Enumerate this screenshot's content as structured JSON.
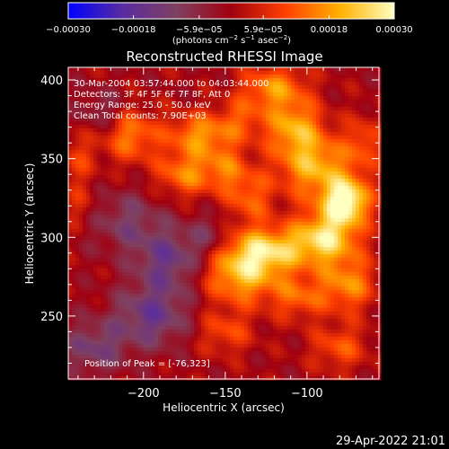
{
  "chart_data": {
    "type": "heatmap",
    "title": "Reconstructed RHESSI Image",
    "xlabel": "Heliocentric X (arcsec)",
    "ylabel": "Heliocentric Y (arcsec)",
    "xlim": [
      -246,
      -56
    ],
    "ylim": [
      210,
      408
    ],
    "x_ticks": [
      -200,
      -150,
      -100
    ],
    "x_tick_labels": [
      "−200",
      "−150",
      "−100"
    ],
    "y_ticks": [
      250,
      300,
      350,
      400
    ],
    "y_tick_labels": [
      "250",
      "300",
      "350",
      "400"
    ],
    "colorbar": {
      "range": [
        -0.0003,
        0.0003
      ],
      "ticks": [
        -0.0003,
        -0.00018,
        -5.9e-05,
        5.9e-05,
        0.00018,
        0.0003
      ],
      "tick_labels": [
        "−0.00030",
        "−0.00018",
        "−5.9e−05",
        "5.9e−05",
        "0.00018",
        "0.00030"
      ],
      "unit_main": "(photons cm",
      "unit_exp1": "−2",
      "unit_mid": " s",
      "unit_exp2": "−1",
      "unit_end": " asec",
      "unit_exp3": "−2",
      "unit_close": ")",
      "colors": [
        "#0000ff",
        "#5a2ca0",
        "#804060",
        "#a00010",
        "#ff4000",
        "#ffb000",
        "#ffffc0"
      ]
    },
    "info_lines": [
      "30-Mar-2004 03:57:44.000 to 04:03:44.000",
      "Detectors: 3F 4F 5F 6F 7F 8F, Att 0",
      "Energy Range: 25.0 - 50.0 keV",
      "Clean     Total counts: 7.90E+03"
    ],
    "peak_label": "Position of Peak = [-76,323]",
    "peak": [
      -76,
      323
    ],
    "sources": [
      {
        "x": -76,
        "y": 323,
        "intensity": 0.0003,
        "sx": 10,
        "sy": 10
      },
      {
        "x": -88,
        "y": 300,
        "intensity": 0.00024,
        "sx": 14,
        "sy": 12
      },
      {
        "x": -125,
        "y": 292,
        "intensity": 0.00023,
        "sx": 18,
        "sy": 10
      },
      {
        "x": -140,
        "y": 275,
        "intensity": 0.0002,
        "sx": 16,
        "sy": 12
      },
      {
        "x": -95,
        "y": 345,
        "intensity": 0.0002,
        "sx": 16,
        "sy": 14
      },
      {
        "x": -108,
        "y": 370,
        "intensity": 0.00018,
        "sx": 12,
        "sy": 12
      },
      {
        "x": -120,
        "y": 395,
        "intensity": 0.00016,
        "sx": 14,
        "sy": 10
      },
      {
        "x": -165,
        "y": 365,
        "intensity": 0.00017,
        "sx": 14,
        "sy": 10
      },
      {
        "x": -175,
        "y": 340,
        "intensity": 0.00015,
        "sx": 12,
        "sy": 10
      },
      {
        "x": -208,
        "y": 365,
        "intensity": 0.00015,
        "sx": 12,
        "sy": 12
      },
      {
        "x": -150,
        "y": 343,
        "intensity": 0.00012,
        "sx": 10,
        "sy": 10
      },
      {
        "x": -135,
        "y": 325,
        "intensity": 0.00012,
        "sx": 10,
        "sy": 12
      },
      {
        "x": -75,
        "y": 270,
        "intensity": 0.00016,
        "sx": 12,
        "sy": 12
      },
      {
        "x": -105,
        "y": 262,
        "intensity": 0.00012,
        "sx": 12,
        "sy": 10
      },
      {
        "x": -150,
        "y": 240,
        "intensity": 0.0001,
        "sx": 12,
        "sy": 10
      },
      {
        "x": -80,
        "y": 230,
        "intensity": 0.00011,
        "sx": 12,
        "sy": 10
      },
      {
        "x": -140,
        "y": 375,
        "intensity": 9e-05,
        "sx": 10,
        "sy": 10
      },
      {
        "x": -65,
        "y": 360,
        "intensity": 0.0001,
        "sx": 8,
        "sy": 12
      },
      {
        "x": -240,
        "y": 320,
        "intensity": 6e-05,
        "sx": 8,
        "sy": 10
      },
      {
        "x": -240,
        "y": 350,
        "intensity": 8e-05,
        "sx": 8,
        "sy": 12
      },
      {
        "x": -210,
        "y": 310,
        "intensity": -0.0001,
        "sx": 16,
        "sy": 14
      },
      {
        "x": -185,
        "y": 285,
        "intensity": -0.00014,
        "sx": 14,
        "sy": 14
      },
      {
        "x": -195,
        "y": 250,
        "intensity": -0.00015,
        "sx": 16,
        "sy": 14
      },
      {
        "x": -230,
        "y": 230,
        "intensity": -0.00012,
        "sx": 14,
        "sy": 12
      },
      {
        "x": -160,
        "y": 300,
        "intensity": -8e-05,
        "sx": 10,
        "sy": 10
      },
      {
        "x": -225,
        "y": 380,
        "intensity": -8e-05,
        "sx": 10,
        "sy": 10
      }
    ]
  },
  "footer": {
    "timestamp": "29-Apr-2022 21:01"
  }
}
